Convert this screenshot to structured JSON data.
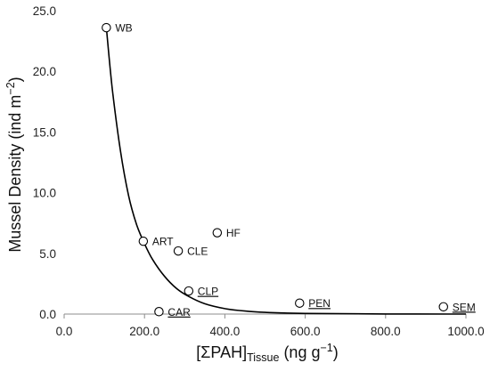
{
  "chart_data": {
    "type": "scatter",
    "title": "",
    "xlabel": {
      "main": "[ΣPAH]",
      "sub": "Tissue",
      "unit_prefix": " (ng g",
      "unit_sup": "−1",
      "unit_suffix": ")"
    },
    "ylabel": {
      "main": "Mussel Density (ind m",
      "sup": "−2",
      "suffix": ")"
    },
    "xlim": [
      0,
      1000
    ],
    "ylim": [
      0,
      25
    ],
    "xticks": [
      "0.0",
      "200.0",
      "400.0",
      "600.0",
      "800.0",
      "1000.0"
    ],
    "yticks": [
      "0.0",
      "5.0",
      "10.0",
      "15.0",
      "20.0",
      "25.0"
    ],
    "grid": false,
    "points": [
      {
        "label": "WB",
        "x": 105,
        "y": 23.6,
        "underline": false
      },
      {
        "label": "ART",
        "x": 197,
        "y": 6.0,
        "underline": false
      },
      {
        "label": "CLE",
        "x": 284,
        "y": 5.2,
        "underline": false
      },
      {
        "label": "HF",
        "x": 381,
        "y": 6.7,
        "underline": false
      },
      {
        "label": "CLP",
        "x": 310,
        "y": 1.9,
        "underline": true
      },
      {
        "label": "CAR",
        "x": 236,
        "y": 0.2,
        "underline": true
      },
      {
        "label": "PEN",
        "x": 586,
        "y": 0.9,
        "underline": true
      },
      {
        "label": "SEM",
        "x": 944,
        "y": 0.6,
        "underline": true
      }
    ],
    "fit_curve": [
      [
        105,
        23.6
      ],
      [
        120,
        18.5
      ],
      [
        140,
        13.5
      ],
      [
        160,
        9.8
      ],
      [
        180,
        7.4
      ],
      [
        200,
        5.8
      ],
      [
        220,
        4.5
      ],
      [
        250,
        3.1
      ],
      [
        280,
        2.1
      ],
      [
        310,
        1.45
      ],
      [
        350,
        0.85
      ],
      [
        400,
        0.45
      ],
      [
        450,
        0.25
      ],
      [
        500,
        0.14
      ],
      [
        600,
        0.05
      ],
      [
        800,
        0.01
      ],
      [
        1000,
        0.0
      ]
    ]
  }
}
